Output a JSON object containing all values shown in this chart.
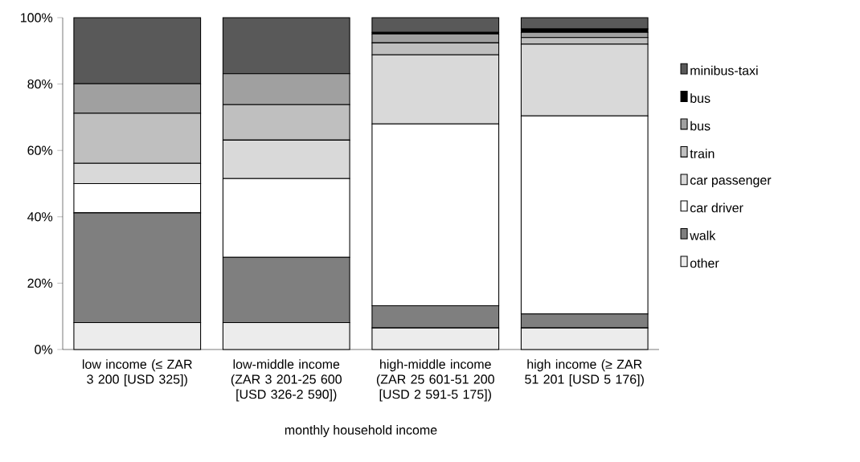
{
  "chart_data": {
    "type": "bar",
    "stacked": true,
    "xlabel": "monthly household income",
    "categories": [
      "low income (≤ ZAR 3 200 [USD 325])",
      "low-middle income (ZAR 3 201-25 600 [USD 326-2 590])",
      "high-middle income (ZAR 25 601-51 200 [USD 2 591-5 175])",
      "high income (≥ ZAR 51 201 [USD 5 176])"
    ],
    "series": [
      {
        "name": "other",
        "color": "#ececec",
        "values": [
          8.1,
          8.1,
          6.5,
          6.5
        ]
      },
      {
        "name": "walk",
        "color": "#7f7f7f",
        "values": [
          33.1,
          19.7,
          6.7,
          4.2
        ]
      },
      {
        "name": "car driver",
        "color": "#ffffff",
        "values": [
          8.8,
          23.7,
          54.8,
          59.7
        ]
      },
      {
        "name": "car passenger",
        "color": "#d9d9d9",
        "values": [
          6.1,
          11.6,
          20.8,
          21.6
        ]
      },
      {
        "name": "train",
        "color": "#bfbfbf",
        "values": [
          15.1,
          10.7,
          3.6,
          2.0
        ]
      },
      {
        "name": "bus",
        "color": "#a0a0a0",
        "values": [
          8.9,
          9.3,
          2.7,
          1.6
        ]
      },
      {
        "name": "bus",
        "color": "#000000",
        "values": [
          0,
          0,
          0.5,
          1.0
        ]
      },
      {
        "name": "minibus-taxi",
        "color": "#595959",
        "values": [
          19.9,
          16.9,
          4.4,
          3.4
        ]
      }
    ],
    "ylim": [
      0,
      100
    ],
    "yticks": [
      {
        "value": 0,
        "label": "0%"
      },
      {
        "value": 20,
        "label": "20%"
      },
      {
        "value": 40,
        "label": "40%"
      },
      {
        "value": 60,
        "label": "60%"
      },
      {
        "value": 80,
        "label": "80%"
      },
      {
        "value": 100,
        "label": "100%"
      }
    ],
    "legend": "right"
  }
}
